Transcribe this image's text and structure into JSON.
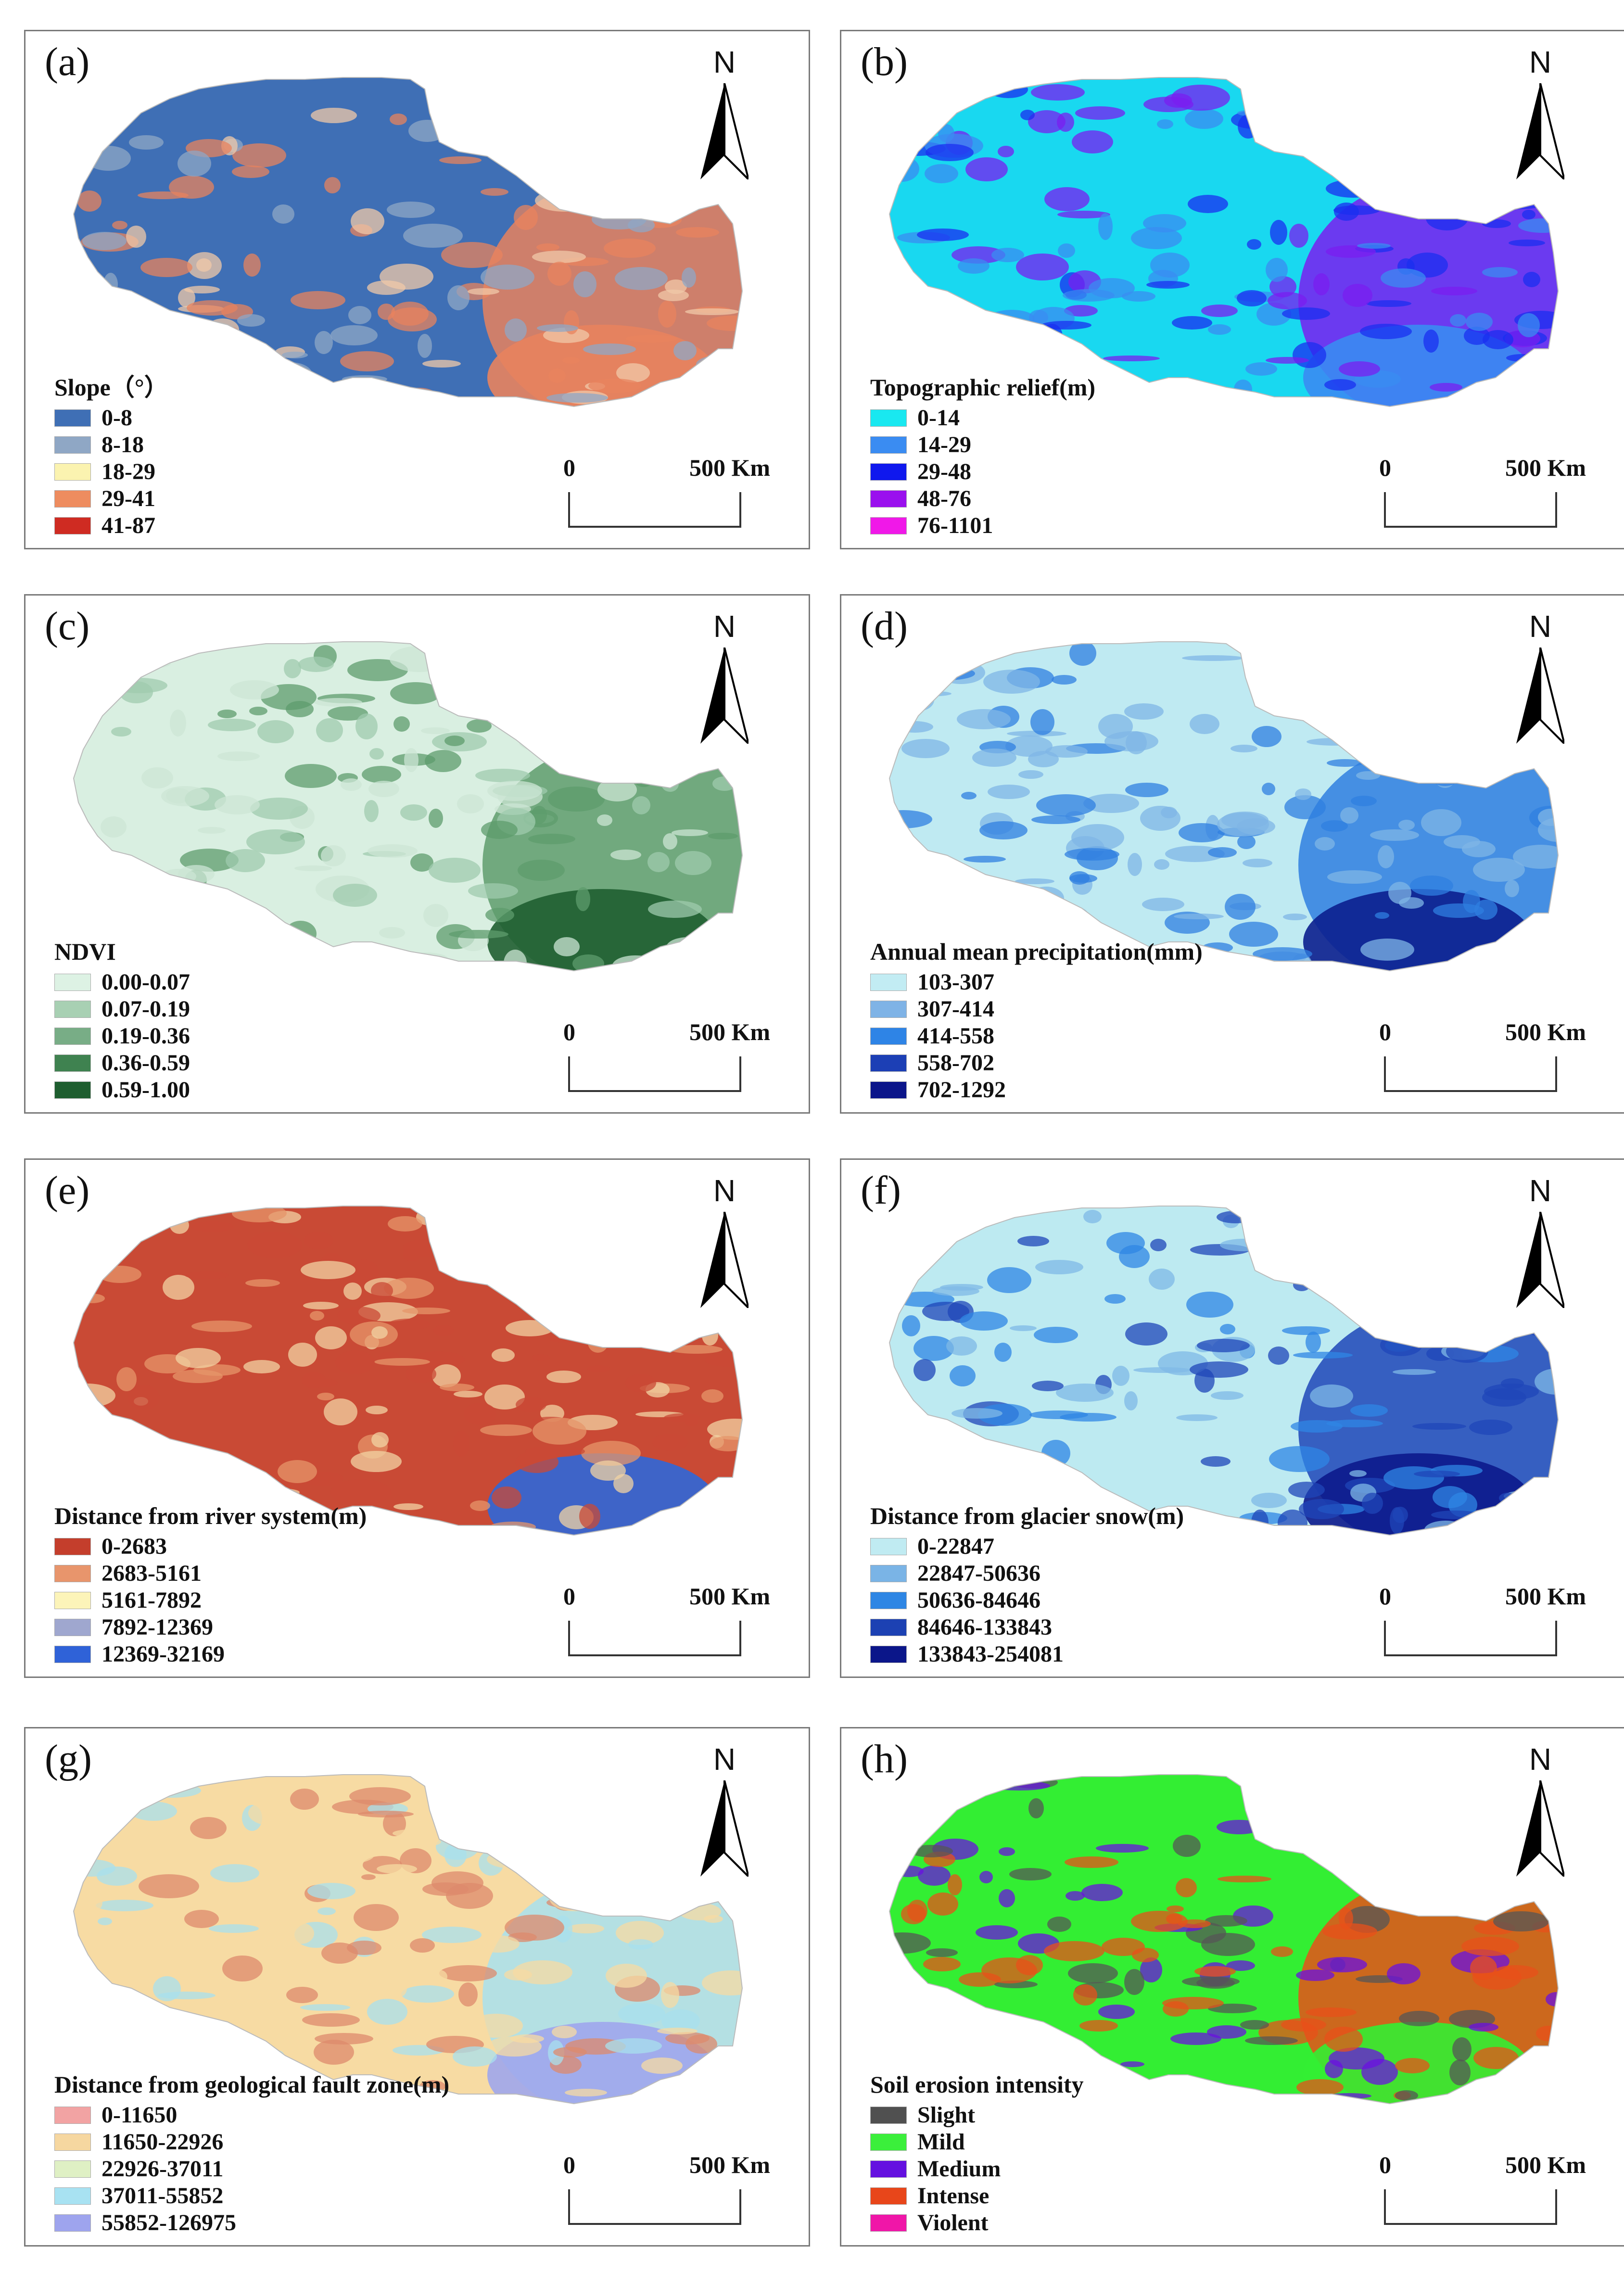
{
  "north_label": "N",
  "scale": {
    "zero": "0",
    "end": "500 Km"
  },
  "panels": [
    {
      "id": "a",
      "label": "(a)",
      "legend_title": "Slope（°）",
      "map_colors": [
        "#3f6fb5",
        "#8fa7c5",
        "#f0c8a8",
        "#e8835e",
        "#e8835e"
      ],
      "items": [
        {
          "label": "0-8",
          "color": "#3f6fb5"
        },
        {
          "label": "8-18",
          "color": "#8fa7c5"
        },
        {
          "label": "18-29",
          "color": "#fbf3b0"
        },
        {
          "label": "29-41",
          "color": "#ee8c5f"
        },
        {
          "label": "41-87",
          "color": "#cf2b22"
        }
      ]
    },
    {
      "id": "b",
      "label": "(b)",
      "legend_title": "Topographic relief(m)",
      "map_colors": [
        "#19d8f0",
        "#3a8cf2",
        "#1a2ff0",
        "#7a1ef0",
        "#3a8cf2"
      ],
      "items": [
        {
          "label": "0-14",
          "color": "#19e8f0"
        },
        {
          "label": "14-29",
          "color": "#3a8cf2"
        },
        {
          "label": "29-48",
          "color": "#0f18ee"
        },
        {
          "label": "48-76",
          "color": "#9a10ee"
        },
        {
          "label": "76-1101",
          "color": "#f018e8"
        }
      ]
    },
    {
      "id": "c",
      "label": "(c)",
      "legend_title": "NDVI",
      "map_colors": [
        "#d9efe1",
        "#cce6d4",
        "#9fcbad",
        "#5e9c6c",
        "#1f5e31"
      ],
      "items": [
        {
          "label": "0.00-0.07",
          "color": "#ddf2e4"
        },
        {
          "label": "0.07-0.19",
          "color": "#a8d0b3"
        },
        {
          "label": "0.19-0.36",
          "color": "#78ad86"
        },
        {
          "label": "0.36-0.59",
          "color": "#3f8250"
        },
        {
          "label": "0.59-1.00",
          "color": "#1e5e2f"
        }
      ]
    },
    {
      "id": "d",
      "label": "(d)",
      "legend_title": "Annual mean precipitation(mm)",
      "map_colors": [
        "#bfeaf2",
        "#7fb6e6",
        "#7fb6e6",
        "#2f7fe0",
        "#0b1f8e"
      ],
      "items": [
        {
          "label": "103-307",
          "color": "#c2ecf3"
        },
        {
          "label": "307-414",
          "color": "#7fb3e6"
        },
        {
          "label": "414-558",
          "color": "#2e84e6"
        },
        {
          "label": "558-702",
          "color": "#1c3fb5"
        },
        {
          "label": "702-1292",
          "color": "#0b158a"
        }
      ]
    },
    {
      "id": "e",
      "label": "(e)",
      "legend_title": "Distance from river system(m)",
      "map_colors": [
        "#c94a35",
        "#e6956a",
        "#f1d3a3",
        "#c94a35",
        "#2f67d8"
      ],
      "items": [
        {
          "label": "0-2683",
          "color": "#c43e2c"
        },
        {
          "label": "2683-5161",
          "color": "#e8956c"
        },
        {
          "label": "5161-7892",
          "color": "#fcf4b9"
        },
        {
          "label": "7892-12369",
          "color": "#9fa7cf"
        },
        {
          "label": "12369-32169",
          "color": "#2f62d8"
        }
      ]
    },
    {
      "id": "f",
      "label": "(f)",
      "legend_title": "Distance from glacier snow(m)",
      "map_colors": [
        "#bdeaf1",
        "#7fb8e6",
        "#2f86e4",
        "#1f46b8",
        "#0c1a8c"
      ],
      "items": [
        {
          "label": "0-22847",
          "color": "#c0ebf2"
        },
        {
          "label": "22847-50636",
          "color": "#7ab4e6"
        },
        {
          "label": "50636-84646",
          "color": "#2e86e4"
        },
        {
          "label": "84646-133843",
          "color": "#1c41b3"
        },
        {
          "label": "133843-254081",
          "color": "#0b168a"
        }
      ]
    },
    {
      "id": "g",
      "label": "(g)",
      "legend_title": "Distance from geological fault zone(m)",
      "map_colors": [
        "#f7dba3",
        "#f7dba3",
        "#dd8a6c",
        "#a8e0ee",
        "#9ea6ec"
      ],
      "items": [
        {
          "label": "0-11650",
          "color": "#f2a3a3"
        },
        {
          "label": "11650-22926",
          "color": "#f6d7a0"
        },
        {
          "label": "22926-37011",
          "color": "#dff0c4"
        },
        {
          "label": "37011-55852",
          "color": "#a8e2f2"
        },
        {
          "label": "55852-126975",
          "color": "#9ea4ee"
        }
      ]
    },
    {
      "id": "h",
      "label": "(h)",
      "legend_title": "Soil erosion intensity",
      "map_colors": [
        "#33ee33",
        "#555555",
        "#6a10e0",
        "#e8501a",
        "#33ee33"
      ],
      "items": [
        {
          "label": "Slight",
          "color": "#505050"
        },
        {
          "label": "Mild",
          "color": "#3bef3b"
        },
        {
          "label": "Medium",
          "color": "#6410e0"
        },
        {
          "label": "Intense",
          "color": "#e8461a"
        },
        {
          "label": "Violent",
          "color": "#f016a8"
        }
      ]
    }
  ]
}
